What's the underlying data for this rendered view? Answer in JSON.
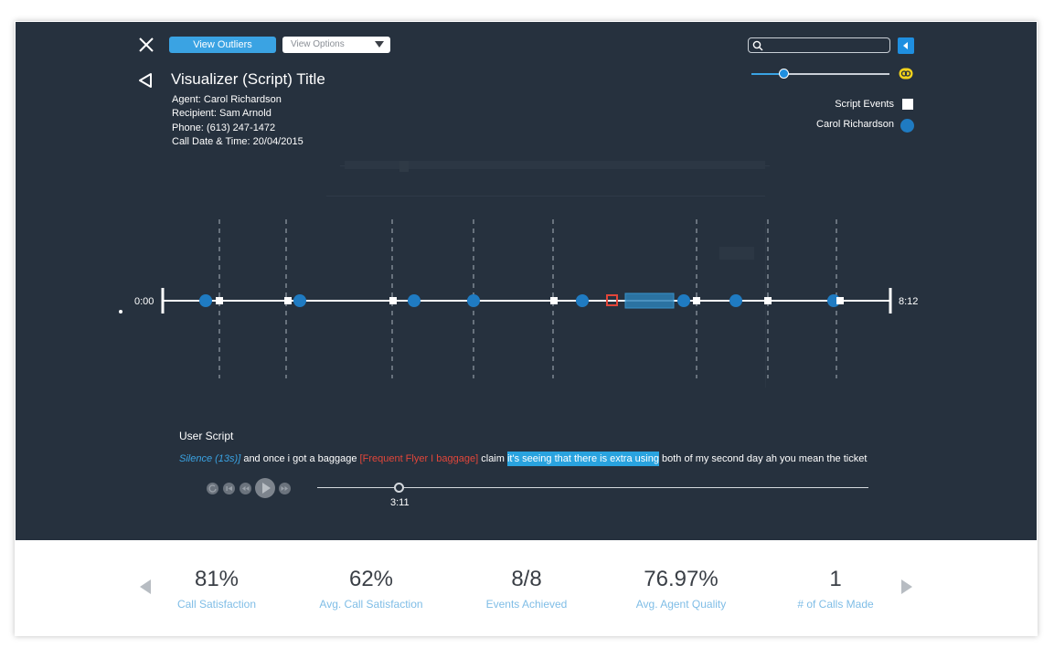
{
  "toolbar": {
    "outliers_label": "View Outliers",
    "view_options": {
      "selected": "View Options"
    }
  },
  "search": {
    "value": "",
    "placeholder": ""
  },
  "legend": {
    "script_events": "Script Events",
    "agent": "Carol Richardson"
  },
  "header": {
    "title": "Visualizer (Script) Title",
    "meta": [
      {
        "label": "Agent:",
        "value": "Carol Richardson"
      },
      {
        "label": "Recipient:",
        "value": "Sam Arnold"
      },
      {
        "label": "Phone:",
        "value": "(613) 247-1472"
      },
      {
        "label": "Call Date & Time:",
        "value": "20/04/2015"
      }
    ]
  },
  "timeline": {
    "start": "0:00",
    "end": "8:12"
  },
  "script": {
    "heading": "User Script",
    "silence": "Silence (13s)]",
    "text_1": " and once i got a baggage ",
    "tag": "[Frequent Flyer I baggage]",
    "text_2": " claim ",
    "highlight": "it's seeing that there is extra using",
    "text_3": " both of my second day ah you mean the ticket"
  },
  "player": {
    "current_time": "3:11"
  },
  "stats": [
    {
      "value": "81%",
      "label": "Call Satisfaction"
    },
    {
      "value": "62%",
      "label": "Avg. Call Satisfaction"
    },
    {
      "value": "8/8",
      "label": "Events Achieved"
    },
    {
      "value": "76.97%",
      "label": "Avg. Agent Quality"
    },
    {
      "value": "1",
      "label": "# of Calls Made"
    }
  ],
  "colors": {
    "panel_bg": "#26313e",
    "accent": "#3aa3e3",
    "agent_dot": "#1f7bc2",
    "tag_red": "#e2463a",
    "stat_label": "#7fbde6"
  },
  "icons": {
    "close": "close-icon",
    "back": "back-triangle-icon",
    "search": "search-icon",
    "collapse": "caret-left-icon",
    "link": "link-icon",
    "prev": "prev-arrow-icon",
    "next": "next-arrow-icon"
  }
}
